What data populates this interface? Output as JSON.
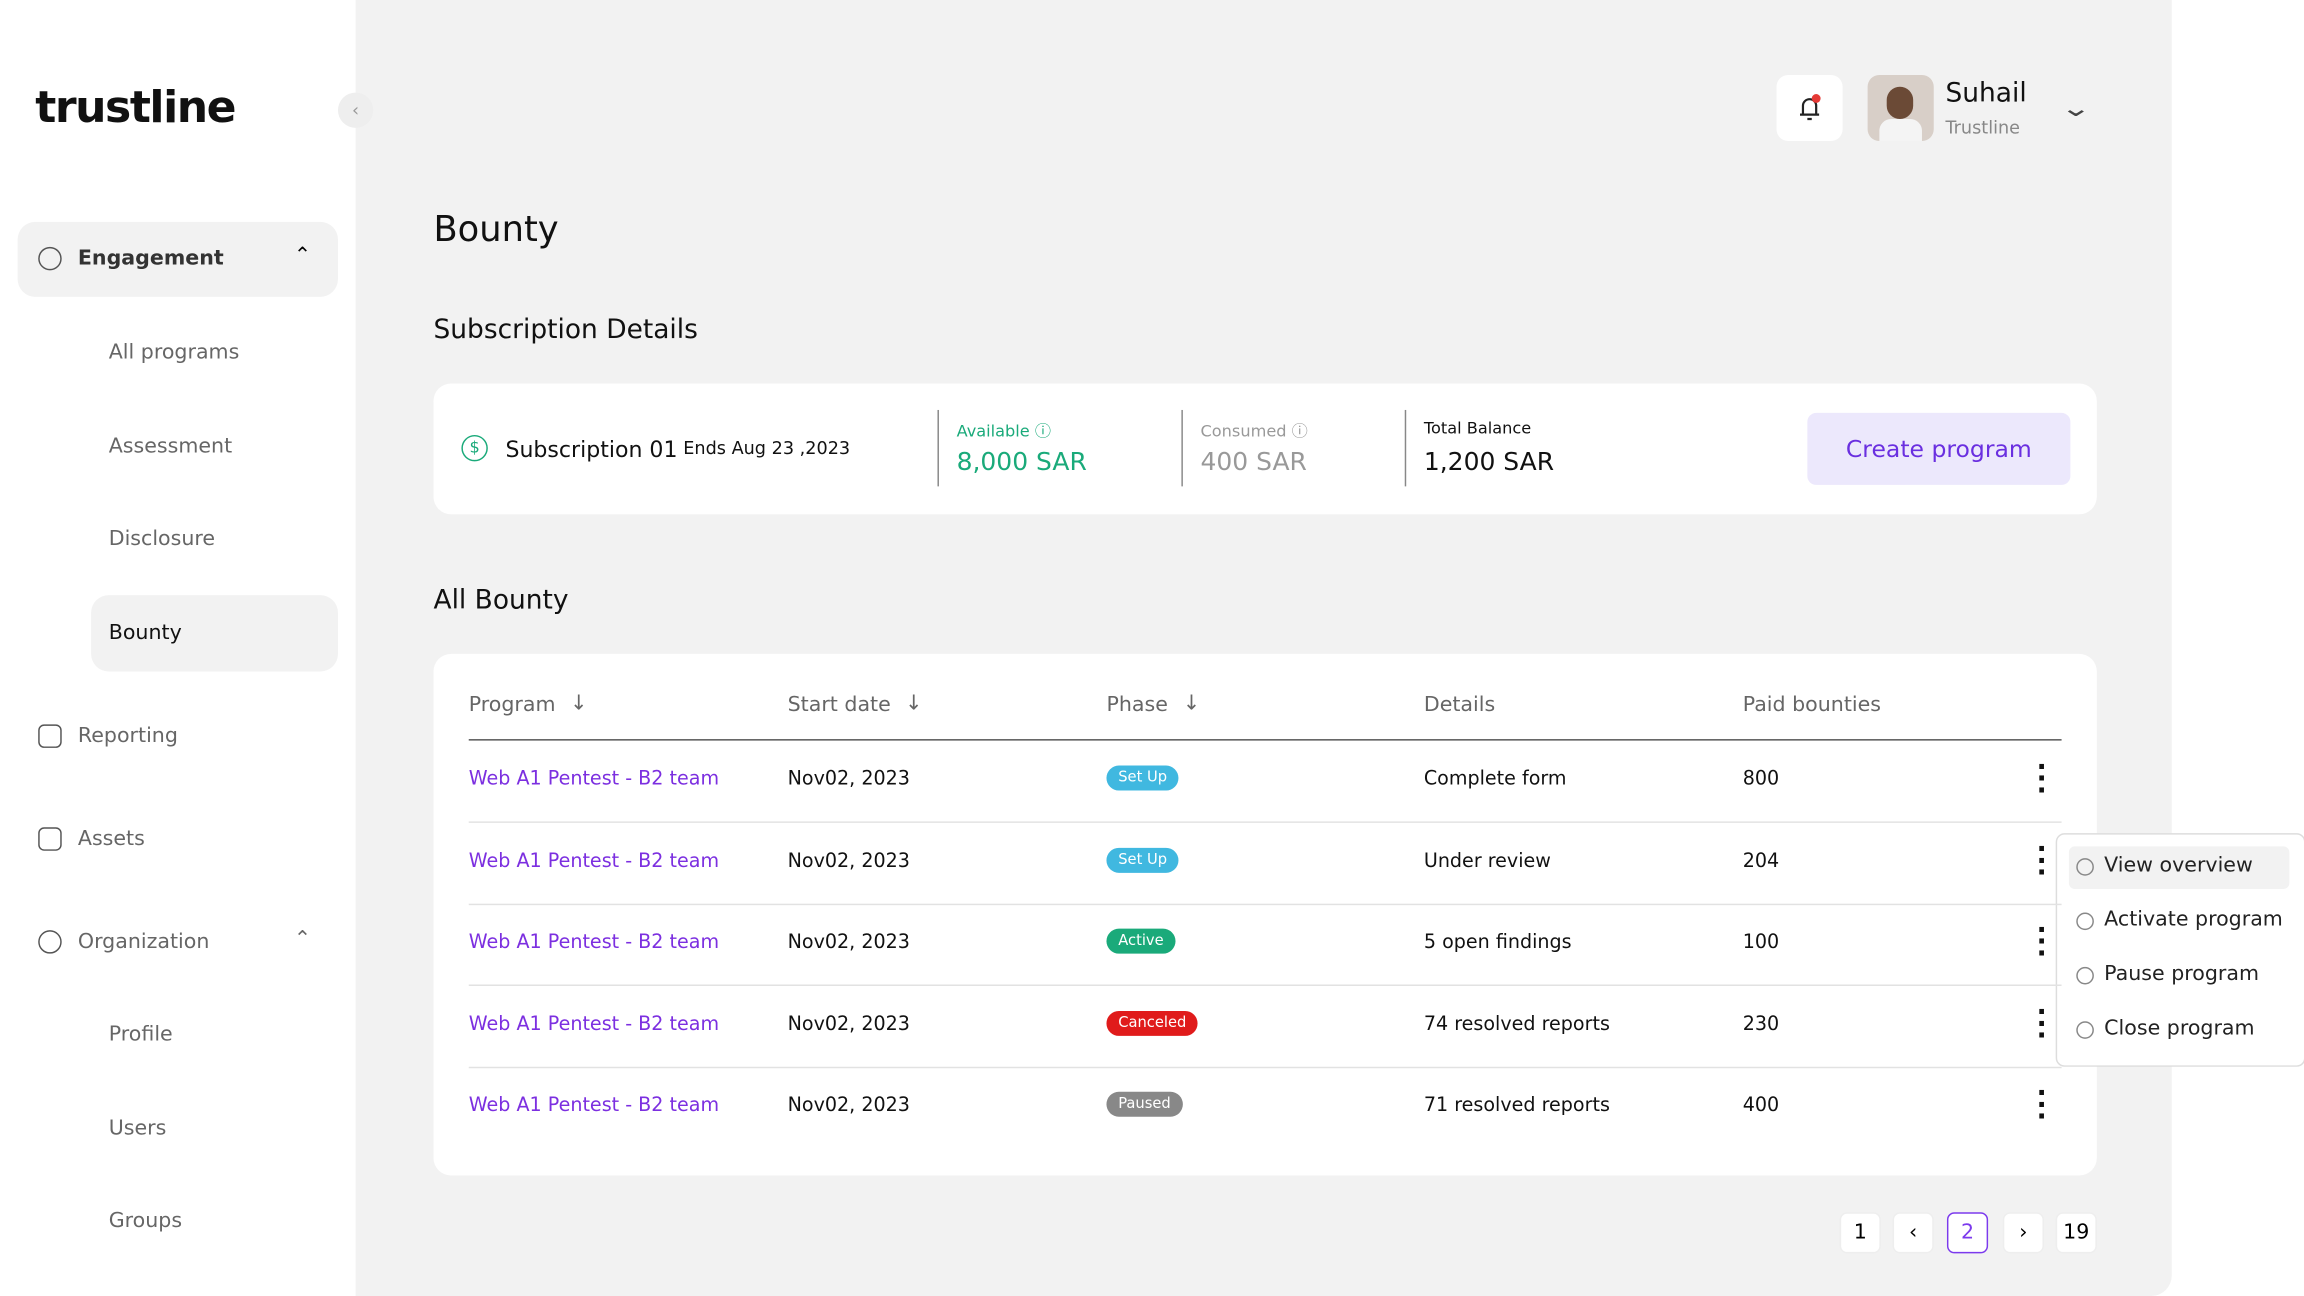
{
  "brand": "trustline",
  "nav": {
    "engagement": "Engagement",
    "all_programs": "All programs",
    "assessment": "Assessment",
    "disclosure": "Disclosure",
    "bounty": "Bounty",
    "reporting": "Reporting",
    "assets": "Assets",
    "organization": "Organization",
    "profile": "Profile",
    "users": "Users",
    "groups": "Groups"
  },
  "user": {
    "name": "Suhail",
    "org": "Trustline"
  },
  "header": {
    "title": "Bounty"
  },
  "subscription": {
    "section_title": "Subscription Details",
    "name": "Subscription 01",
    "ends": "Ends Aug 23 ,2023",
    "stats": [
      {
        "label": "Available",
        "value": "8,000 SAR"
      },
      {
        "label": "Consumed",
        "value": "400 SAR"
      },
      {
        "label": "Total Balance",
        "value": "1,200 SAR"
      }
    ],
    "button": "Create program"
  },
  "table": {
    "title": "All Bounty",
    "columns": [
      "Program",
      "Start date",
      "Phase",
      "Details",
      "Paid bounties"
    ],
    "rows": [
      [
        "Web A1 Pentest - B2 team",
        "Nov02, 2023",
        "Set Up",
        "Complete form",
        800
      ],
      [
        "Web A1 Pentest - B2 team",
        "Nov02, 2023",
        "Set Up",
        "Under review",
        204
      ],
      [
        "Web A1 Pentest - B2 team",
        "Nov02, 2023",
        "Active",
        "5 open findings",
        100
      ],
      [
        "Web A1 Pentest - B2 team",
        "Nov02, 2023",
        "Canceled",
        "74 resolved reports",
        230
      ],
      [
        "Web A1 Pentest - B2 team",
        "Nov02, 2023",
        "Paused",
        "71 resolved reports",
        400
      ]
    ]
  },
  "menu": [
    "View overview",
    "Activate program",
    "Pause program",
    "Close program"
  ],
  "pagination": {
    "first": 1,
    "current": 2,
    "last": 19
  }
}
